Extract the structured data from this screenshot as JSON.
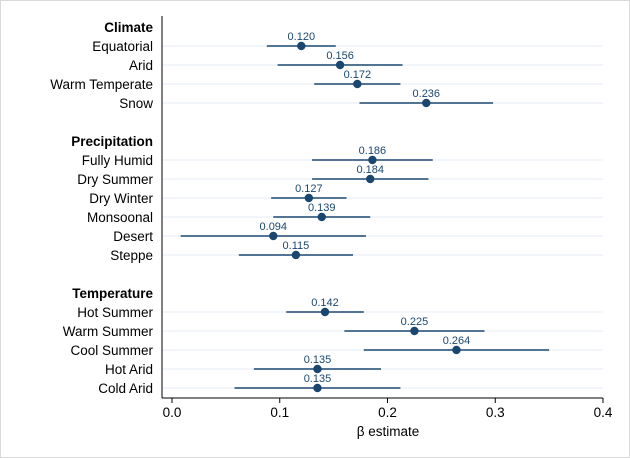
{
  "chart_data": {
    "type": "scatter",
    "title": "",
    "xlabel": "β estimate",
    "ylabel": "",
    "xlim": [
      0,
      0.4
    ],
    "xticks": [
      0,
      0.1,
      0.2,
      0.3,
      0.4
    ],
    "xtick_labels": [
      "0.0",
      "0.1",
      "0.2",
      "0.3",
      "0.4"
    ],
    "grid": false,
    "error_bars": "horizontal confidence intervals",
    "groups": [
      {
        "name": "Climate",
        "items": [
          {
            "label": "Equatorial",
            "estimate": 0.12,
            "value_label": "0.120",
            "ci": [
              0.088,
              0.152
            ]
          },
          {
            "label": "Arid",
            "estimate": 0.156,
            "value_label": "0.156",
            "ci": [
              0.098,
              0.214
            ]
          },
          {
            "label": "Warm Temperate",
            "estimate": 0.172,
            "value_label": "0.172",
            "ci": [
              0.132,
              0.212
            ]
          },
          {
            "label": "Snow",
            "estimate": 0.236,
            "value_label": "0.236",
            "ci": [
              0.174,
              0.298
            ]
          }
        ]
      },
      {
        "name": "Precipitation",
        "items": [
          {
            "label": "Fully Humid",
            "estimate": 0.186,
            "value_label": "0.186",
            "ci": [
              0.13,
              0.242
            ]
          },
          {
            "label": "Dry Summer",
            "estimate": 0.184,
            "value_label": "0.184",
            "ci": [
              0.13,
              0.238
            ]
          },
          {
            "label": "Dry Winter",
            "estimate": 0.127,
            "value_label": "0.127",
            "ci": [
              0.092,
              0.162
            ]
          },
          {
            "label": "Monsoonal",
            "estimate": 0.139,
            "value_label": "0.139",
            "ci": [
              0.094,
              0.184
            ]
          },
          {
            "label": "Desert",
            "estimate": 0.094,
            "value_label": "0.094",
            "ci": [
              0.008,
              0.18
            ]
          },
          {
            "label": "Steppe",
            "estimate": 0.115,
            "value_label": "0.115",
            "ci": [
              0.062,
              0.168
            ]
          }
        ]
      },
      {
        "name": "Temperature",
        "items": [
          {
            "label": "Hot Summer",
            "estimate": 0.142,
            "value_label": "0.142",
            "ci": [
              0.106,
              0.178
            ]
          },
          {
            "label": "Warm Summer",
            "estimate": 0.225,
            "value_label": "0.225",
            "ci": [
              0.16,
              0.29
            ]
          },
          {
            "label": "Cool Summer",
            "estimate": 0.264,
            "value_label": "0.264",
            "ci": [
              0.178,
              0.35
            ]
          },
          {
            "label": "Hot Arid",
            "estimate": 0.135,
            "value_label": "0.135",
            "ci": [
              0.076,
              0.194
            ]
          },
          {
            "label": "Cold Arid",
            "estimate": 0.135,
            "value_label": "0.135",
            "ci": [
              0.058,
              0.212
            ]
          }
        ]
      }
    ]
  }
}
